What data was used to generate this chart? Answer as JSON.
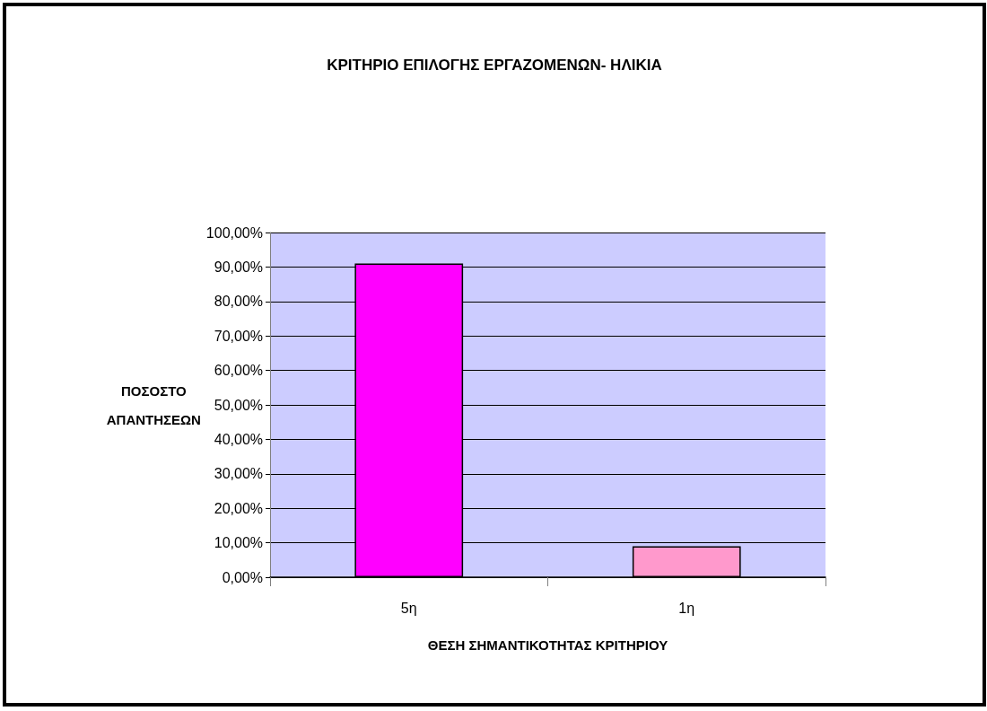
{
  "chart_data": {
    "type": "bar",
    "title": "ΚΡΙΤΗΡΙΟ ΕΠΙΛΟΓΗΣ ΕΡΓΑΖΟΜΕΝΩΝ- ΗΛΙΚΙΑ",
    "xlabel": "ΘΕΣΗ ΣΗΜΑΝΤΙΚΟΤΗΤΑΣ ΚΡΙΤΗΡΙΟΥ",
    "ylabel": "ΠΟΣΟΣΤΟ ΑΠΑΝΤΗΣΕΩΝ",
    "categories": [
      "5η",
      "1η"
    ],
    "values": [
      91,
      9
    ],
    "colors": [
      "#ff00ff",
      "#ff99cc"
    ],
    "ylim": [
      0,
      100
    ],
    "yticks": [
      {
        "value": 0,
        "label": "0,00%"
      },
      {
        "value": 10,
        "label": "10,00%"
      },
      {
        "value": 20,
        "label": "20,00%"
      },
      {
        "value": 30,
        "label": "30,00%"
      },
      {
        "value": 40,
        "label": "40,00%"
      },
      {
        "value": 50,
        "label": "50,00%"
      },
      {
        "value": 60,
        "label": "60,00%"
      },
      {
        "value": 70,
        "label": "70,00%"
      },
      {
        "value": 80,
        "label": "80,00%"
      },
      {
        "value": 90,
        "label": "90,00%"
      },
      {
        "value": 100,
        "label": "100,00%"
      }
    ],
    "grid": "y"
  }
}
